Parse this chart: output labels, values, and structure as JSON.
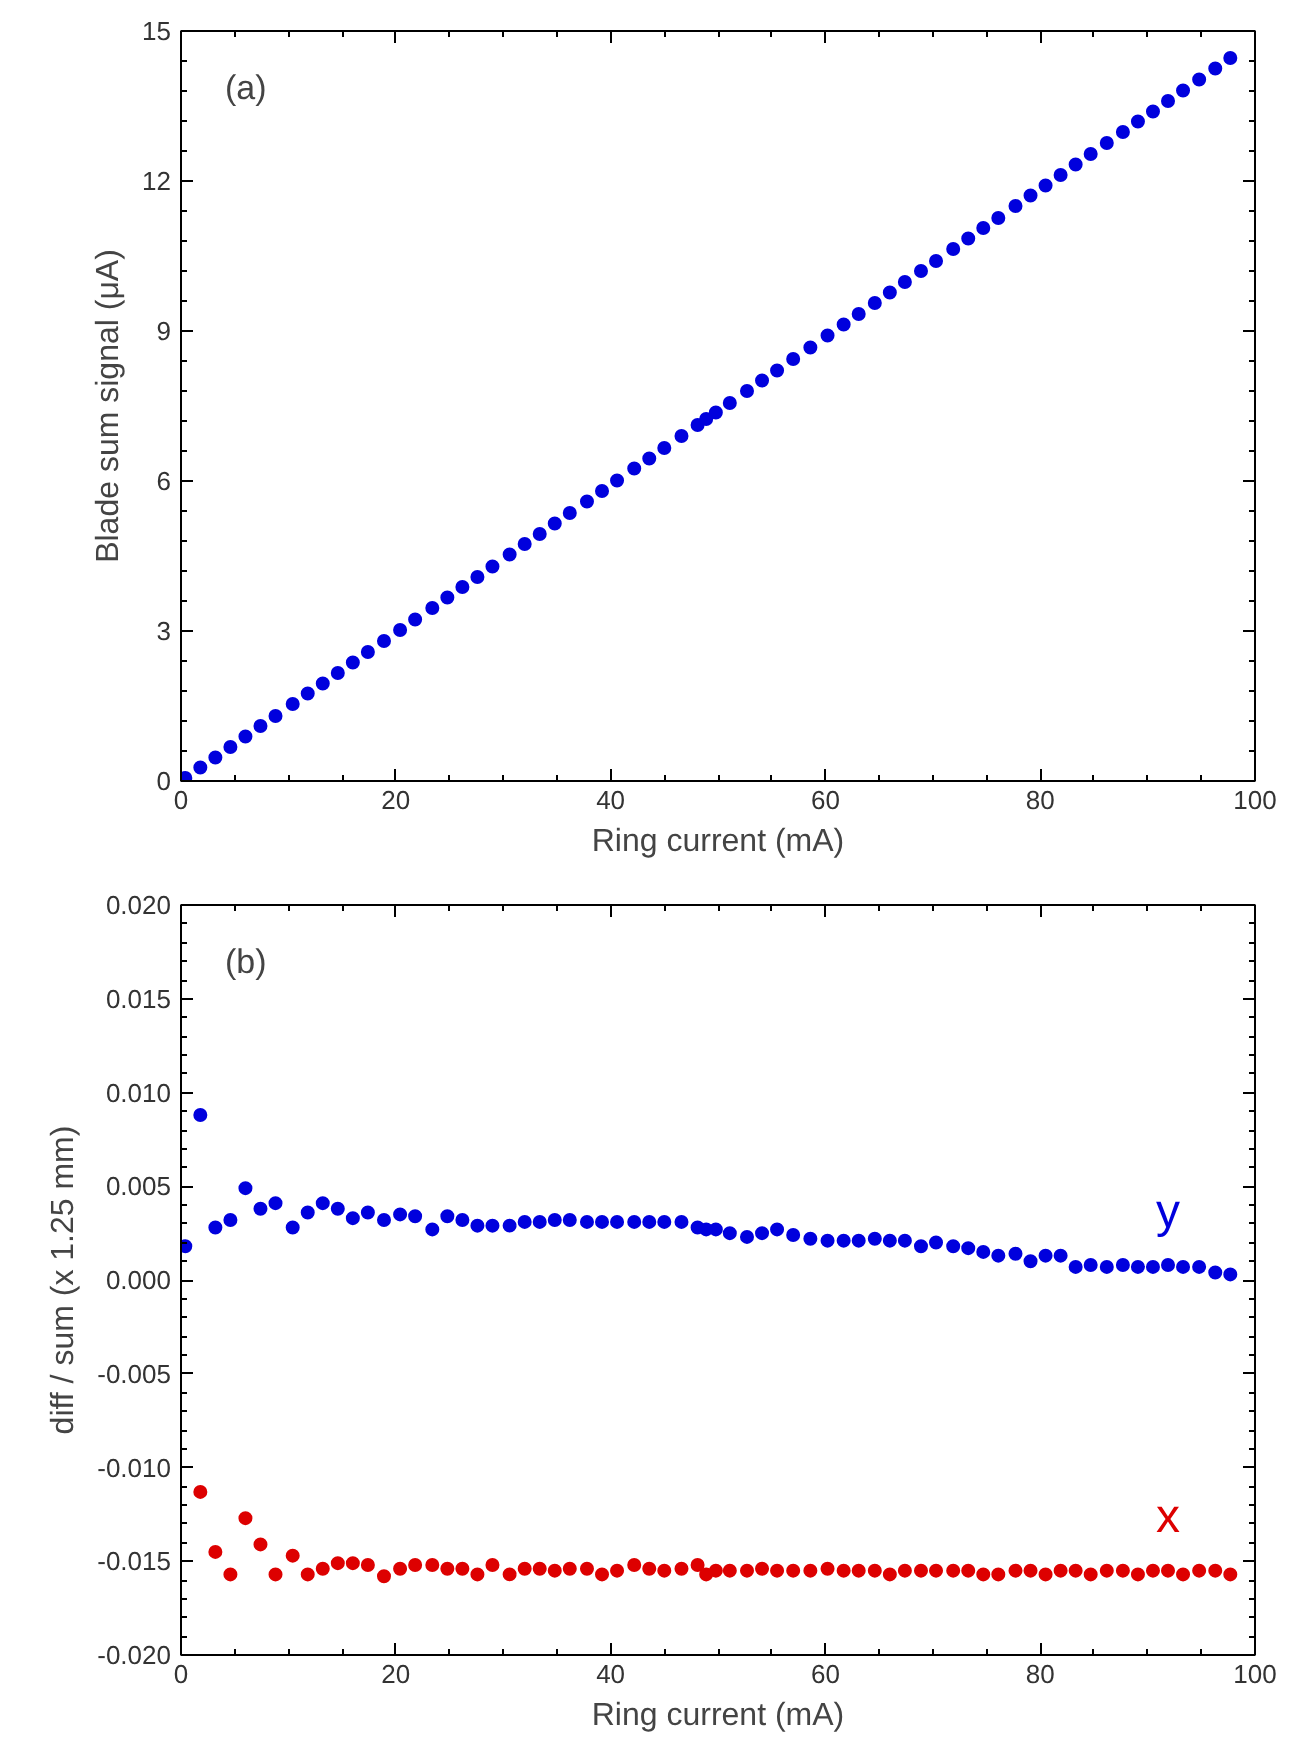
{
  "chart_data": [
    {
      "type": "scatter",
      "xlabel": "Ring current (mA)",
      "ylabel": "Blade sum signal (μA)",
      "annotations": [
        "(a)"
      ],
      "x": [
        0.4,
        1.8,
        3.2,
        4.6,
        6.0,
        7.4,
        8.8,
        10.4,
        11.8,
        13.2,
        14.6,
        16.0,
        17.4,
        18.9,
        20.4,
        21.8,
        23.4,
        24.8,
        26.2,
        27.6,
        29.0,
        30.6,
        32.0,
        33.4,
        34.8,
        36.2,
        37.8,
        39.2,
        40.6,
        42.2,
        43.6,
        45.0,
        46.6,
        48.1,
        48.9,
        49.8,
        51.1,
        52.7,
        54.1,
        55.5,
        57.0,
        58.6,
        60.2,
        61.7,
        63.1,
        64.6,
        66.0,
        67.4,
        68.9,
        70.3,
        71.9,
        73.3,
        74.7,
        76.1,
        77.7,
        79.1,
        80.5,
        81.9,
        83.3,
        84.7,
        86.2,
        87.7,
        89.1,
        90.5,
        91.9,
        93.3,
        94.8,
        96.3,
        97.7
      ],
      "series": [
        {
          "color": "#0000dd",
          "values": [
            0.06,
            0.27,
            0.47,
            0.68,
            0.89,
            1.1,
            1.3,
            1.54,
            1.75,
            1.95,
            2.16,
            2.37,
            2.58,
            2.8,
            3.02,
            3.23,
            3.46,
            3.67,
            3.88,
            4.08,
            4.29,
            4.53,
            4.74,
            4.94,
            5.15,
            5.36,
            5.59,
            5.8,
            6.01,
            6.25,
            6.45,
            6.66,
            6.9,
            7.12,
            7.24,
            7.37,
            7.56,
            7.8,
            8.01,
            8.21,
            8.44,
            8.67,
            8.91,
            9.13,
            9.34,
            9.56,
            9.77,
            9.98,
            10.2,
            10.4,
            10.64,
            10.85,
            11.06,
            11.26,
            11.5,
            11.71,
            11.91,
            12.12,
            12.33,
            12.54,
            12.76,
            12.98,
            13.19,
            13.39,
            13.6,
            13.81,
            14.03,
            14.25,
            14.46
          ]
        }
      ],
      "xlim": [
        0,
        100
      ],
      "xticks": [
        0,
        20,
        40,
        60,
        80,
        100
      ],
      "ylim": [
        0,
        15
      ],
      "yticks": [
        0,
        3,
        6,
        9,
        12,
        15
      ],
      "marker": "circle",
      "grid": false
    },
    {
      "type": "scatter",
      "xlabel": "Ring current (mA)",
      "ylabel": "diff / sum (x 1.25 mm)",
      "annotations": [
        "(b)"
      ],
      "x": [
        0.4,
        1.8,
        3.2,
        4.6,
        6.0,
        7.4,
        8.8,
        10.4,
        11.8,
        13.2,
        14.6,
        16.0,
        17.4,
        18.9,
        20.4,
        21.8,
        23.4,
        24.8,
        26.2,
        27.6,
        29.0,
        30.6,
        32.0,
        33.4,
        34.8,
        36.2,
        37.8,
        39.2,
        40.6,
        42.2,
        43.6,
        45.0,
        46.6,
        48.1,
        48.9,
        49.8,
        51.1,
        52.7,
        54.1,
        55.5,
        57.0,
        58.6,
        60.2,
        61.7,
        63.1,
        64.6,
        66.0,
        67.4,
        68.9,
        70.3,
        71.9,
        73.3,
        74.7,
        76.1,
        77.7,
        79.1,
        80.5,
        81.9,
        83.3,
        84.7,
        86.2,
        87.7,
        89.1,
        90.5,
        91.9,
        93.3,
        94.8,
        96.3,
        97.7
      ],
      "series": [
        {
          "name": "y",
          "color": "#0000dd",
          "values": [
            0.0018,
            0.0088,
            0.0028,
            0.0032,
            0.0049,
            0.0038,
            0.0041,
            0.0028,
            0.0036,
            0.0041,
            0.0038,
            0.0033,
            0.0036,
            0.0032,
            0.0035,
            0.0034,
            0.0027,
            0.0034,
            0.0032,
            0.0029,
            0.0029,
            0.0029,
            0.0031,
            0.0031,
            0.0032,
            0.0032,
            0.0031,
            0.0031,
            0.0031,
            0.0031,
            0.0031,
            0.0031,
            0.0031,
            0.0028,
            0.0027,
            0.0027,
            0.0025,
            0.0023,
            0.0025,
            0.0027,
            0.0024,
            0.0022,
            0.0021,
            0.0021,
            0.0021,
            0.0022,
            0.0021,
            0.0021,
            0.0018,
            0.002,
            0.0018,
            0.0017,
            0.0015,
            0.0013,
            0.0014,
            0.001,
            0.0013,
            0.0013,
            0.0007,
            0.0008,
            0.0007,
            0.0008,
            0.0007,
            0.0007,
            0.0008,
            0.0007,
            0.0007,
            0.0004,
            0.0003
          ]
        },
        {
          "name": "x",
          "color": "#dd0000",
          "values": [
            null,
            -0.0113,
            -0.0145,
            -0.0157,
            -0.0127,
            -0.0141,
            -0.0157,
            -0.0147,
            -0.0157,
            -0.0154,
            -0.0151,
            -0.0151,
            -0.0152,
            -0.0158,
            -0.0154,
            -0.0152,
            -0.0152,
            -0.0154,
            -0.0154,
            -0.0157,
            -0.0152,
            -0.0157,
            -0.0154,
            -0.0154,
            -0.0155,
            -0.0154,
            -0.0154,
            -0.0157,
            -0.0155,
            -0.0152,
            -0.0154,
            -0.0155,
            -0.0154,
            -0.0152,
            -0.0157,
            -0.0155,
            -0.0155,
            -0.0155,
            -0.0154,
            -0.0155,
            -0.0155,
            -0.0155,
            -0.0154,
            -0.0155,
            -0.0155,
            -0.0155,
            -0.0157,
            -0.0155,
            -0.0155,
            -0.0155,
            -0.0155,
            -0.0155,
            -0.0157,
            -0.0157,
            -0.0155,
            -0.0155,
            -0.0157,
            -0.0155,
            -0.0155,
            -0.0157,
            -0.0155,
            -0.0155,
            -0.0157,
            -0.0155,
            -0.0155,
            -0.0157,
            -0.0155,
            -0.0155,
            -0.0157
          ]
        }
      ],
      "xlim": [
        0,
        100
      ],
      "xticks": [
        0,
        20,
        40,
        60,
        80,
        100
      ],
      "ylim": [
        -0.02,
        0.02
      ],
      "yticks": [
        {
          "value": -0.02,
          "label": "-0.020"
        },
        {
          "value": -0.015,
          "label": "-0.015"
        },
        {
          "value": -0.01,
          "label": "-0.010"
        },
        {
          "value": -0.005,
          "label": "-0.005"
        },
        {
          "value": 0,
          "label": "0.000"
        },
        {
          "value": 0.005,
          "label": "0.005"
        },
        {
          "value": 0.01,
          "label": "0.010"
        },
        {
          "value": 0.015,
          "label": "0.015"
        },
        {
          "value": 0.02,
          "label": "0.020"
        }
      ],
      "marker": "circle",
      "grid": false
    }
  ]
}
